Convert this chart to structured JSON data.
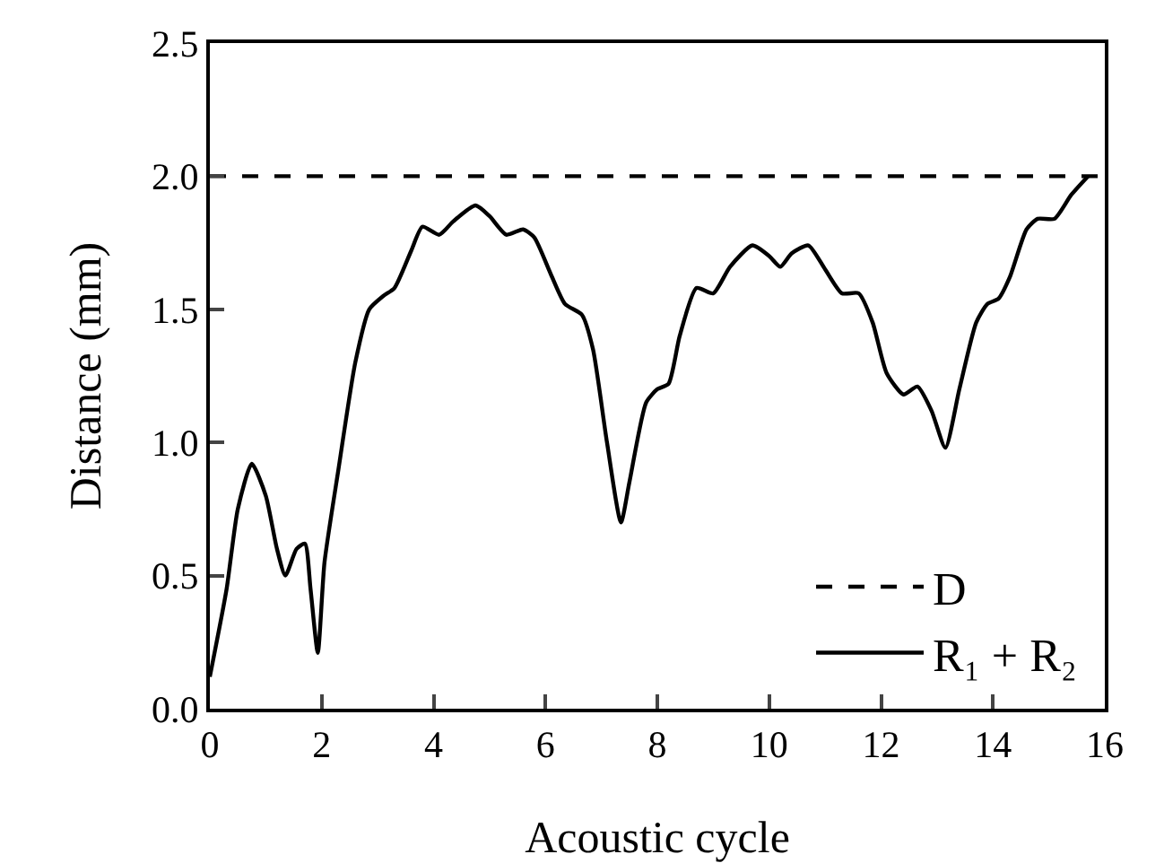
{
  "chart_data": {
    "type": "line",
    "xlabel": "Acoustic cycle",
    "ylabel": "Distance (mm)",
    "xlim": [
      0,
      16
    ],
    "xticks": [
      0,
      2,
      4,
      6,
      8,
      10,
      12,
      14,
      16
    ],
    "ylim": [
      0,
      2.5
    ],
    "yticks": [
      {
        "value": 0,
        "label": "0.0"
      },
      {
        "value": 0.5,
        "label": "0.5"
      },
      {
        "value": 1,
        "label": "1.0"
      },
      {
        "value": 1.5,
        "label": "1.5"
      },
      {
        "value": 2,
        "label": "2.0"
      },
      {
        "value": 2.5,
        "label": "2.5"
      }
    ],
    "grid": false,
    "legend": "bottom right",
    "marker": "none",
    "series": [
      {
        "name": "D",
        "color": "#000000",
        "line_style": "dashed",
        "x": [
          0,
          16
        ],
        "values": [
          2,
          2
        ]
      },
      {
        "name": "R₁ + R₂",
        "color": "#000000",
        "line_style": "solid",
        "x": [
          0,
          0.3,
          0.5,
          0.75,
          1.0,
          1.2,
          1.35,
          1.55,
          1.7,
          1.8,
          1.93,
          2.05,
          2.3,
          2.6,
          2.85,
          3.1,
          3.3,
          3.6,
          3.8,
          4.1,
          4.35,
          4.75,
          5.0,
          5.3,
          5.6,
          5.8,
          6.1,
          6.35,
          6.65,
          6.85,
          7.1,
          7.35,
          7.5,
          7.8,
          8.0,
          8.2,
          8.4,
          8.7,
          9.0,
          9.3,
          9.7,
          10.0,
          10.2,
          10.4,
          10.7,
          11.0,
          11.3,
          11.6,
          11.85,
          12.1,
          12.4,
          12.65,
          12.9,
          13.15,
          13.4,
          13.7,
          13.9,
          14.1,
          14.3,
          14.6,
          14.8,
          15.1,
          15.4,
          15.7
        ],
        "values": [
          0.12,
          0.45,
          0.75,
          0.92,
          0.8,
          0.6,
          0.5,
          0.6,
          0.62,
          0.45,
          0.21,
          0.55,
          0.9,
          1.3,
          1.5,
          1.55,
          1.58,
          1.72,
          1.81,
          1.78,
          1.83,
          1.89,
          1.85,
          1.78,
          1.8,
          1.77,
          1.63,
          1.52,
          1.48,
          1.35,
          1.0,
          0.7,
          0.85,
          1.15,
          1.2,
          1.22,
          1.4,
          1.58,
          1.56,
          1.66,
          1.74,
          1.7,
          1.66,
          1.71,
          1.74,
          1.65,
          1.56,
          1.56,
          1.45,
          1.26,
          1.18,
          1.21,
          1.12,
          0.98,
          1.2,
          1.45,
          1.52,
          1.54,
          1.62,
          1.8,
          1.84,
          1.84,
          1.93,
          2.0
        ]
      }
    ]
  }
}
